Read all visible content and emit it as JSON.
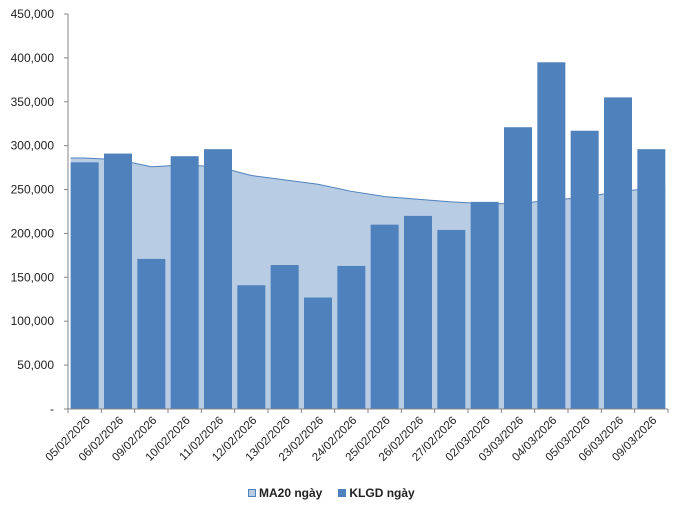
{
  "chart_data": {
    "type": "bar",
    "categories": [
      "05/02/2026",
      "06/02/2026",
      "09/02/2026",
      "10/02/2026",
      "11/02/2026",
      "12/02/2026",
      "13/02/2026",
      "23/02/2026",
      "24/02/2026",
      "25/02/2026",
      "26/02/2026",
      "27/02/2026",
      "02/03/2026",
      "03/03/2026",
      "04/03/2026",
      "05/03/2026",
      "06/03/2026",
      "09/03/2026"
    ],
    "series": [
      {
        "name": "MA20 ngày",
        "type": "area",
        "color": "#b8cce4",
        "values": [
          286000,
          284000,
          276000,
          278000,
          276000,
          266000,
          261000,
          256000,
          248000,
          242000,
          239000,
          236000,
          234000,
          234000,
          238000,
          241000,
          248000,
          251000
        ]
      },
      {
        "name": "KLGD ngày",
        "type": "bar",
        "color": "#4f81bd",
        "values": [
          281000,
          291000,
          171000,
          288000,
          296000,
          141000,
          164000,
          127000,
          163000,
          210000,
          220000,
          204000,
          236000,
          321000,
          395000,
          317000,
          355000,
          296000
        ]
      }
    ],
    "y_ticks": [
      "-",
      "50,000",
      "100,000",
      "150,000",
      "200,000",
      "250,000",
      "300,000",
      "350,000",
      "400,000",
      "450,000"
    ],
    "ylim": [
      0,
      450000
    ],
    "grid": false,
    "legend_position": "bottom"
  }
}
